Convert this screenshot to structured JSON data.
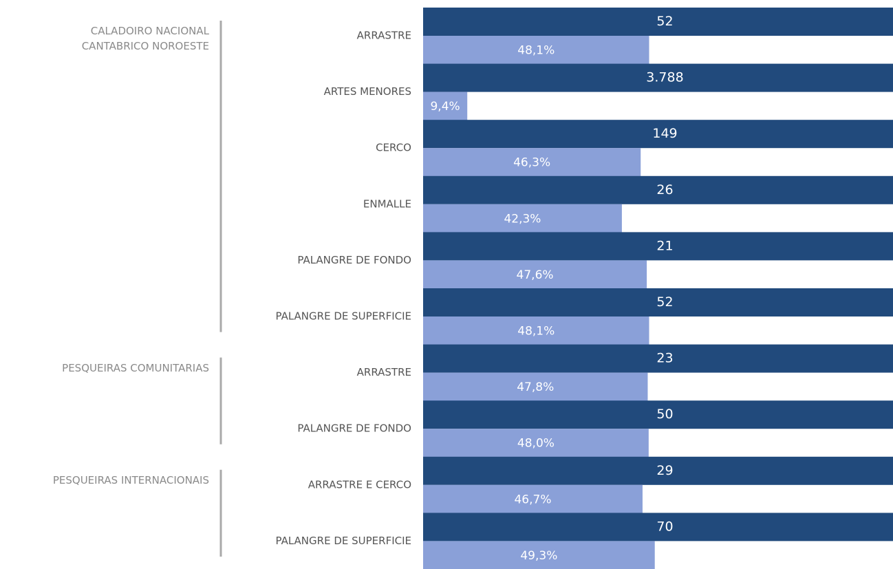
{
  "chart_data": {
    "type": "bar",
    "xlim": [
      0,
      100
    ],
    "count_color": "#214a7c",
    "share_color": "#8aa0d8",
    "groups": [
      {
        "label": "CALADOIRO NACIONAL CANTABRICO NOROESTE",
        "categories": [
          "ARRASTRE",
          "ARTES MENORES",
          "CERCO",
          "ENMALLE",
          "PALANGRE DE FONDO",
          "PALANGRE DE SUPERFICIE"
        ],
        "counts": [
          52,
          3788,
          149,
          26,
          21,
          52
        ],
        "count_labels": [
          "52",
          "3.788",
          "149",
          "26",
          "21",
          "52"
        ],
        "shares": [
          48.1,
          9.4,
          46.3,
          42.3,
          47.6,
          48.1
        ],
        "share_labels": [
          "48,1%",
          "9,4%",
          "46,3%",
          "42,3%",
          "47,6%",
          "48,1%"
        ]
      },
      {
        "label": "PESQUEIRAS COMUNITARIAS",
        "categories": [
          "ARRASTRE",
          "PALANGRE DE FONDO"
        ],
        "counts": [
          23,
          50
        ],
        "count_labels": [
          "23",
          "50"
        ],
        "shares": [
          47.8,
          48.0
        ],
        "share_labels": [
          "47,8%",
          "48,0%"
        ]
      },
      {
        "label": "PESQUEIRAS INTERNACIONAIS",
        "categories": [
          "ARRASTRE E CERCO",
          "PALANGRE DE SUPERFICIE"
        ],
        "counts": [
          29,
          70
        ],
        "count_labels": [
          "29",
          "70"
        ],
        "shares": [
          46.7,
          49.3
        ],
        "share_labels": [
          "46,7%",
          "49,3%"
        ]
      }
    ]
  }
}
